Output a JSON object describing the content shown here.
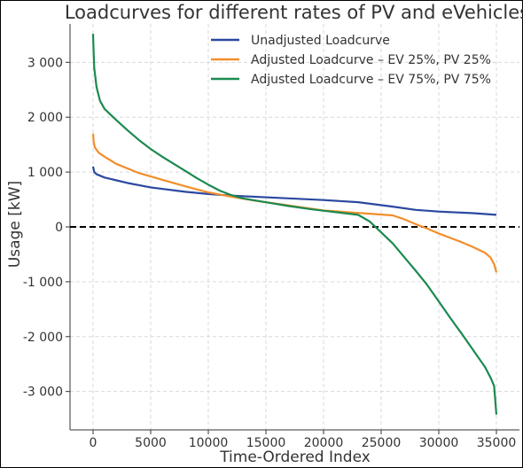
{
  "chart_data": {
    "type": "line",
    "title": "Loadcurves for different rates of PV and eVehicles",
    "xlabel": "Time-Ordered Index",
    "ylabel": "Usage [kW]",
    "xlim": [
      -2000,
      37000
    ],
    "ylim": [
      -3700,
      3700
    ],
    "xticks": [
      0,
      5000,
      10000,
      15000,
      20000,
      25000,
      30000,
      35000
    ],
    "xtick_labels": [
      "0",
      "5000",
      "10000",
      "15000",
      "20000",
      "25000",
      "30000",
      "35000"
    ],
    "yticks": [
      3000,
      2000,
      1000,
      0,
      -1000,
      -2000,
      -3000
    ],
    "ytick_labels": [
      "3 000",
      "2 000",
      "1 000",
      "0",
      "-1 000",
      "-2 000",
      "-3 000"
    ],
    "grid": true,
    "legend_position": "top-right",
    "reference_line": {
      "y": 0,
      "style": "dashed",
      "color": "#000000"
    },
    "series": [
      {
        "name": "Unadjusted Loadcurve",
        "color": "#2b48a0",
        "points": [
          [
            0,
            1100
          ],
          [
            100,
            1000
          ],
          [
            300,
            960
          ],
          [
            1000,
            900
          ],
          [
            3000,
            800
          ],
          [
            5000,
            720
          ],
          [
            8000,
            640
          ],
          [
            10000,
            600
          ],
          [
            12000,
            570
          ],
          [
            15000,
            540
          ],
          [
            18000,
            510
          ],
          [
            20000,
            490
          ],
          [
            23000,
            450
          ],
          [
            26000,
            370
          ],
          [
            28000,
            310
          ],
          [
            30000,
            280
          ],
          [
            33000,
            250
          ],
          [
            35000,
            220
          ]
        ]
      },
      {
        "name": "Adjusted Loadcurve – EV 25%, PV 25%",
        "color": "#f28e2b",
        "points": [
          [
            0,
            1700
          ],
          [
            50,
            1550
          ],
          [
            150,
            1450
          ],
          [
            500,
            1350
          ],
          [
            1000,
            1280
          ],
          [
            2000,
            1150
          ],
          [
            4000,
            980
          ],
          [
            6000,
            860
          ],
          [
            8000,
            740
          ],
          [
            10000,
            630
          ],
          [
            12000,
            550
          ],
          [
            14000,
            480
          ],
          [
            16000,
            420
          ],
          [
            18000,
            360
          ],
          [
            20000,
            300
          ],
          [
            22000,
            270
          ],
          [
            24000,
            240
          ],
          [
            26000,
            210
          ],
          [
            27000,
            140
          ],
          [
            28000,
            50
          ],
          [
            29000,
            -30
          ],
          [
            30000,
            -120
          ],
          [
            31000,
            -200
          ],
          [
            32000,
            -280
          ],
          [
            33000,
            -370
          ],
          [
            34000,
            -470
          ],
          [
            34500,
            -560
          ],
          [
            34800,
            -680
          ],
          [
            35000,
            -830
          ]
        ]
      },
      {
        "name": "Adjusted Loadcurve – EV 75%, PV 75%",
        "color": "#1b8a4f",
        "points": [
          [
            0,
            3520
          ],
          [
            30,
            3300
          ],
          [
            100,
            2900
          ],
          [
            300,
            2550
          ],
          [
            600,
            2300
          ],
          [
            1000,
            2150
          ],
          [
            2000,
            1950
          ],
          [
            3000,
            1760
          ],
          [
            4000,
            1580
          ],
          [
            5000,
            1420
          ],
          [
            6000,
            1280
          ],
          [
            7000,
            1150
          ],
          [
            8000,
            1020
          ],
          [
            9000,
            890
          ],
          [
            10000,
            770
          ],
          [
            11000,
            660
          ],
          [
            12000,
            580
          ],
          [
            13000,
            520
          ],
          [
            15000,
            450
          ],
          [
            17000,
            380
          ],
          [
            19000,
            320
          ],
          [
            21000,
            270
          ],
          [
            23000,
            220
          ],
          [
            24000,
            100
          ],
          [
            24500,
            0
          ],
          [
            25000,
            -100
          ],
          [
            26000,
            -300
          ],
          [
            27000,
            -550
          ],
          [
            28000,
            -800
          ],
          [
            29000,
            -1060
          ],
          [
            30000,
            -1360
          ],
          [
            31000,
            -1660
          ],
          [
            32000,
            -1950
          ],
          [
            33000,
            -2250
          ],
          [
            34000,
            -2550
          ],
          [
            34500,
            -2750
          ],
          [
            34800,
            -2900
          ],
          [
            35000,
            -3420
          ]
        ]
      }
    ]
  }
}
